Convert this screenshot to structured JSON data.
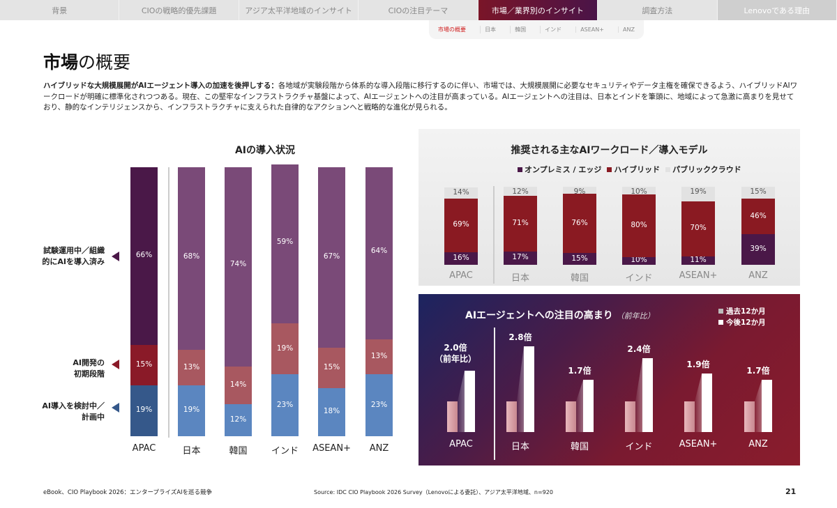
{
  "nav": {
    "tabs": [
      "背景",
      "CIOの戦略的優先課題",
      "アジア太平洋地域のインサイト",
      "CIOの注目テーマ",
      "市場／業界別のインサイト",
      "調査方法",
      "Lenovoである理由"
    ],
    "active": 4,
    "subtabs": [
      "市場の概要",
      "日本",
      "韓国",
      "インド",
      "ASEAN+",
      "ANZ"
    ]
  },
  "page": {
    "title_bold": "市場",
    "title_rest": "の概要",
    "intro_bold": "ハイブリッドな大規模展開がAIエージェント導入の加速を後押しする：",
    "intro": "各地域が実験段階から体系的な導入段階に移行するのに伴い、市場では、大規模展開に必要なセキュリティやデータ主権を確保できるよう、ハイブリッドAIワークロードが明確に標準化されつつある。現在、この堅牢なインフラストラクチャ基盤によって、AIエージェントへの注目が高まっている。AIエージェントへの注目は、日本とインドを筆頭に、地域によって急激に高まりを見せており、静的なインテリジェンスから、インフラストラクチャに支えられた自律的なアクションへと戦略的な進化が見られる。"
  },
  "chart_data": [
    {
      "type": "bar",
      "stacked": true,
      "title": "AIの導入状況",
      "categories": [
        "APAC",
        "日本",
        "韓国",
        "インド",
        "ASEAN+",
        "ANZ"
      ],
      "series": [
        {
          "name": "AI導入を検討中／計画中",
          "values": [
            19,
            19,
            12,
            23,
            18,
            23
          ],
          "color": "#5b86c0",
          "color_apac": "#35588a"
        },
        {
          "name": "AI開発の初期段階",
          "values": [
            15,
            13,
            14,
            19,
            15,
            13
          ],
          "color": "#a85860",
          "color_apac": "#8a1a28"
        },
        {
          "name": "試験運用中／組織的にAIを導入済み",
          "values": [
            66,
            68,
            74,
            59,
            67,
            64
          ],
          "color": "#7a4a78",
          "color_apac": "#4a1848"
        }
      ],
      "legend_labels": [
        [
          "試験運用中／組織",
          "的にAIを導入済み"
        ],
        [
          "AI開発の",
          "初期段階"
        ],
        [
          "AI導入を検討中／",
          "計画中"
        ]
      ],
      "ylim": [
        0,
        100
      ]
    },
    {
      "type": "bar",
      "stacked": true,
      "title": "推奨される主なAIワークロード／導入モデル",
      "categories": [
        "APAC",
        "日本",
        "韓国",
        "インド",
        "ASEAN+",
        "ANZ"
      ],
      "series": [
        {
          "name": "オンプレミス / エッジ",
          "values": [
            16,
            17,
            15,
            10,
            11,
            39
          ],
          "color": "#4a1848"
        },
        {
          "name": "ハイブリッド",
          "values": [
            69,
            71,
            76,
            80,
            70,
            46
          ],
          "color": "#8a1a22"
        },
        {
          "name": "パブリッククラウド",
          "values": [
            14,
            12,
            9,
            10,
            19,
            15
          ],
          "color": "#e2e2e2"
        }
      ],
      "ylim": [
        0,
        100
      ]
    },
    {
      "type": "bar",
      "title": "AIエージェントへの注目の高まり",
      "subtitle": "（前年比）",
      "categories": [
        "APAC",
        "日本",
        "韓国",
        "インド",
        "ASEAN+",
        "ANZ"
      ],
      "series": [
        {
          "name": "過去12か月",
          "values": [
            1,
            1,
            1,
            1,
            1,
            1
          ]
        },
        {
          "name": "今後12か月",
          "values": [
            2.0,
            2.8,
            1.7,
            2.4,
            1.9,
            1.7
          ]
        }
      ],
      "labels": [
        "2.0倍",
        "2.8倍",
        "1.7倍",
        "2.4倍",
        "1.9倍",
        "1.7倍"
      ],
      "apac_note": "（前年比）"
    }
  ],
  "footer": {
    "left": "eBook、CIO Playbook 2026：エンタープライズAIを巡る競争",
    "source": "Source: IDC CIO Playbook 2026 Survey（Lenovoによる委託）、アジア太平洋地域、n=920",
    "page": "21"
  }
}
